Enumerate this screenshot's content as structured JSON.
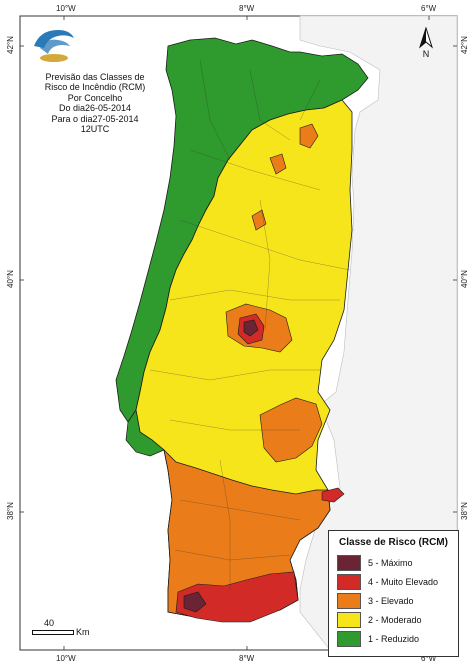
{
  "title_lines": [
    "Previsão das Classes de",
    "Risco de Incêndio (RCM)",
    "Por Concelho",
    "Do dia26-05-2014",
    "Para o dia27-05-2014",
    "12UTC"
  ],
  "axis_labels": {
    "top": [
      "10°W",
      "8°W",
      "6°W"
    ],
    "bottom": [
      "10°W",
      "8°W",
      "6°W"
    ],
    "left": [
      "42°N",
      "40°N",
      "38°N"
    ],
    "right": [
      "42°N",
      "40°N",
      "38°N"
    ]
  },
  "legend": {
    "title": "Classe de Risco (RCM)",
    "items": [
      {
        "label": "5 - Máximo",
        "color": "#6b2433"
      },
      {
        "label": "4 - Muito Elevado",
        "color": "#d12a27"
      },
      {
        "label": "3 - Elevado",
        "color": "#ea7d1a"
      },
      {
        "label": "2 - Moderado",
        "color": "#f7e51b"
      },
      {
        "label": "1 - Reduzido",
        "color": "#2f9a2d"
      }
    ]
  },
  "scale": {
    "value": "40",
    "unit": "Km"
  },
  "north": {
    "label": "N"
  },
  "colors": {
    "reduzido": "#2f9a2d",
    "moderado": "#f7e51b",
    "elevado": "#ea7d1a",
    "muito_elevado": "#d12a27",
    "maximo": "#6b2433",
    "spain": "#f2f2f2",
    "sea": "#ffffff",
    "logo_blue": "#2a7ab8",
    "logo_gold": "#d4a83a"
  }
}
